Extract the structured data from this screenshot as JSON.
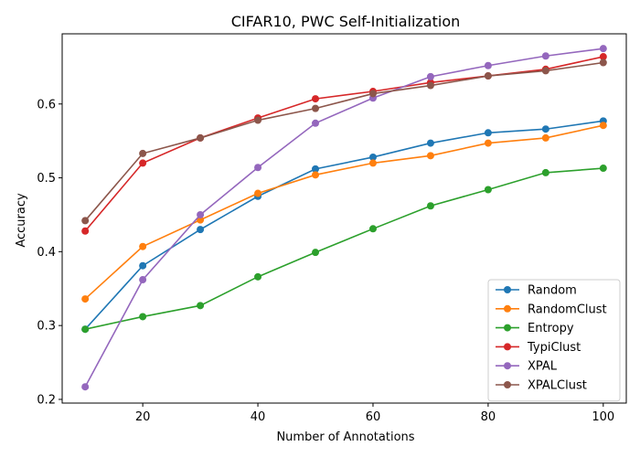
{
  "chart_data": {
    "type": "line",
    "title": "CIFAR10, PWC Self-Initialization",
    "xlabel": "Number of Annotations",
    "ylabel": "Accuracy",
    "x": [
      10,
      20,
      30,
      40,
      50,
      60,
      70,
      80,
      90,
      100
    ],
    "xlim": [
      6,
      104
    ],
    "ylim": [
      0.195,
      0.695
    ],
    "xticks": [
      20,
      40,
      60,
      80,
      100
    ],
    "yticks": [
      0.2,
      0.3,
      0.4,
      0.5,
      0.6
    ],
    "xtick_labels": [
      "20",
      "40",
      "60",
      "80",
      "100"
    ],
    "ytick_labels": [
      "0.2",
      "0.3",
      "0.4",
      "0.5",
      "0.6"
    ],
    "grid": false,
    "legend_position": "lower-right",
    "series": [
      {
        "name": "Random",
        "color": "#1f77b4",
        "values": [
          0.295,
          0.381,
          0.43,
          0.475,
          0.512,
          0.528,
          0.547,
          0.561,
          0.566,
          0.577
        ]
      },
      {
        "name": "RandomClust",
        "color": "#ff7f0e",
        "values": [
          0.336,
          0.407,
          0.443,
          0.479,
          0.504,
          0.52,
          0.53,
          0.547,
          0.554,
          0.571
        ]
      },
      {
        "name": "Entropy",
        "color": "#2ca02c",
        "values": [
          0.295,
          0.312,
          0.327,
          0.366,
          0.399,
          0.431,
          0.462,
          0.484,
          0.507,
          0.513
        ]
      },
      {
        "name": "TypiClust",
        "color": "#d62728",
        "values": [
          0.428,
          0.52,
          0.554,
          0.581,
          0.607,
          0.617,
          0.629,
          0.638,
          0.647,
          0.664
        ]
      },
      {
        "name": "XPAL",
        "color": "#9467bd",
        "values": [
          0.217,
          0.362,
          0.45,
          0.514,
          0.574,
          0.608,
          0.637,
          0.652,
          0.665,
          0.675
        ]
      },
      {
        "name": "XPALClust",
        "color": "#8c564b",
        "values": [
          0.442,
          0.533,
          0.554,
          0.578,
          0.594,
          0.614,
          0.625,
          0.638,
          0.645,
          0.656
        ]
      }
    ]
  }
}
